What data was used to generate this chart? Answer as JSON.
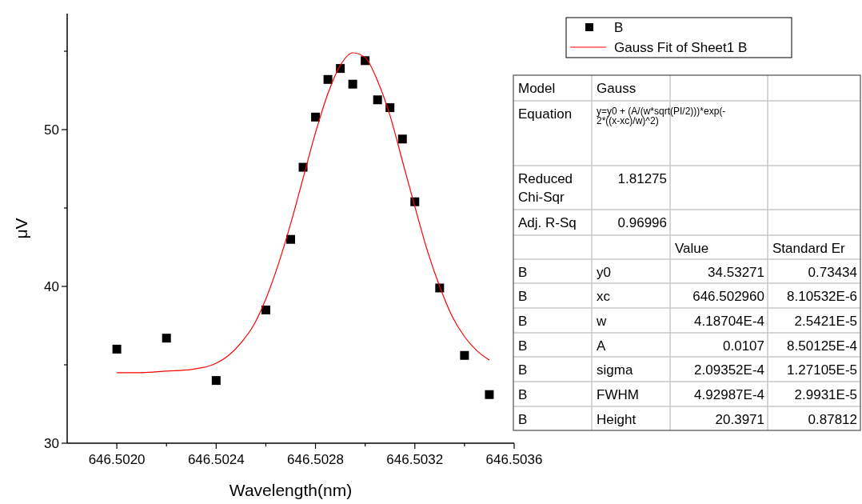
{
  "chart_data": {
    "type": "scatter",
    "xlabel": "Wavelength(nm)",
    "ylabel": "μV",
    "xlim": [
      646.5018,
      646.5036
    ],
    "ylim": [
      30,
      57.4
    ],
    "xticks": [
      {
        "value": 646.502,
        "label": "646.5020"
      },
      {
        "value": 646.5022,
        "label": null
      },
      {
        "value": 646.5024,
        "label": "646.5024"
      },
      {
        "value": 646.5026,
        "label": null
      },
      {
        "value": 646.5028,
        "label": "646.5028"
      },
      {
        "value": 646.503,
        "label": null
      },
      {
        "value": 646.5032,
        "label": "646.5032"
      },
      {
        "value": 646.5034,
        "label": null
      },
      {
        "value": 646.5036,
        "label": "646.5036"
      }
    ],
    "yticks": [
      30,
      {
        "value": 35,
        "label": null
      },
      40,
      {
        "value": 45,
        "label": null
      },
      50,
      {
        "value": 55,
        "label": null
      }
    ],
    "grid": false,
    "legend": "top right",
    "series": [
      {
        "name": "B",
        "marker": "square",
        "color": "#000000",
        "x": [
          646.502,
          646.5022,
          646.5024,
          646.5026,
          646.5027,
          646.50275,
          646.5028,
          646.50285,
          646.5029,
          646.50295,
          646.503,
          646.50305,
          646.5031,
          646.50315,
          646.5032,
          646.5033,
          646.5034,
          646.5035
        ],
        "values": [
          36.0,
          36.7,
          34.0,
          38.5,
          43.0,
          47.6,
          50.8,
          53.2,
          53.9,
          52.9,
          54.4,
          51.9,
          51.4,
          49.4,
          45.4,
          39.9,
          35.6,
          33.1
        ]
      },
      {
        "name": "Gauss Fit of Sheet1 B",
        "type": "line",
        "marker": "none",
        "line_style": "solid",
        "color": "#ff0000",
        "x": [
          646.502,
          646.5021,
          646.5022,
          646.5023,
          646.5024,
          646.50245,
          646.5025,
          646.50255,
          646.5026,
          646.50265,
          646.5027,
          646.50275,
          646.5028,
          646.50285,
          646.5029,
          646.50295,
          646.503,
          646.50305,
          646.5031,
          646.50315,
          646.5032,
          646.50325,
          646.5033,
          646.50335,
          646.5034,
          646.50345,
          646.5035
        ],
        "values": [
          34.5,
          34.5,
          34.6,
          34.7,
          35.1,
          35.6,
          36.4,
          37.5,
          39.2,
          41.4,
          44.0,
          46.9,
          49.8,
          52.3,
          54.1,
          54.9,
          54.6,
          53.1,
          50.9,
          48.0,
          45.1,
          42.3,
          40.0,
          38.1,
          36.8,
          35.9,
          35.3
        ]
      }
    ],
    "annotations": [
      "Model",
      "Gauss",
      "Equation",
      "y=y0 + (A/(w*sqrt(PI/2)))*exp(-2*((x-xc)/w)^2)",
      "Reduced Chi-Sqr",
      "1.81275",
      "Adj. R-Sq",
      "0.96996",
      "Value",
      "Standard Er",
      "B",
      "y0",
      "34.53271",
      "0.73434",
      "B",
      "xc",
      "646.502960",
      "8.10532E-6",
      "B",
      "w",
      "4.18704E-4",
      "2.5421E-5",
      "B",
      "A",
      "0.0107",
      "8.50125E-4",
      "B",
      "sigma",
      "2.09352E-4",
      "1.27105E-5",
      "B",
      "FWHM",
      "4.92987E-4",
      "2.9931E-5",
      "B",
      "Height",
      "20.3971",
      "0.87812"
    ]
  }
}
